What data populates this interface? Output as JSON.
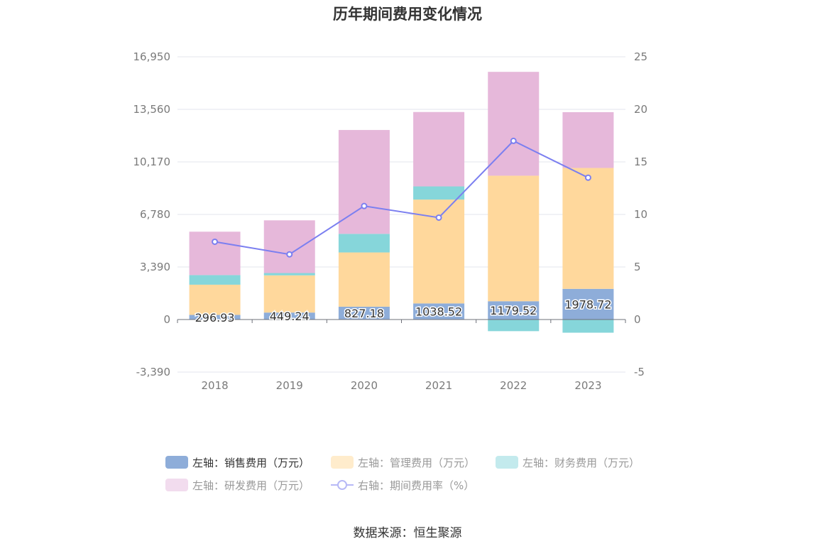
{
  "page": {
    "title": "历年期间费用变化情况",
    "source": "数据来源：恒生聚源"
  },
  "chart_data": {
    "type": "bar",
    "stacked": true,
    "title": "历年期间费用变化情况",
    "categories": [
      "2018",
      "2019",
      "2020",
      "2021",
      "2022",
      "2023"
    ],
    "left_axis": {
      "min": -3390,
      "max": 16950,
      "ticks": [
        -3390,
        0,
        3390,
        6780,
        10170,
        13560,
        16950
      ],
      "tick_labels": [
        "-3,390",
        "0",
        "3,390",
        "6,780",
        "10,170",
        "13,560",
        "16,950"
      ]
    },
    "right_axis": {
      "min": -5,
      "max": 25,
      "ticks": [
        -5,
        0,
        5,
        10,
        15,
        20,
        25
      ],
      "tick_labels": [
        "-5",
        "0",
        "5",
        "10",
        "15",
        "20",
        "25"
      ]
    },
    "series": [
      {
        "name": "左轴：销售费用（万元）",
        "axis": "left",
        "kind": "bar",
        "color": "#8eadd9",
        "values": [
          296.93,
          449.24,
          827.18,
          1038.52,
          1179.52,
          1978.72
        ],
        "labels": [
          "296.93",
          "449.24",
          "827.18",
          "1038.52",
          "1179.52",
          "1978.72"
        ]
      },
      {
        "name": "左轴：管理费用（万元）",
        "axis": "left",
        "kind": "bar",
        "color": "#ffd89c",
        "values": [
          1950,
          2400,
          3500,
          6700,
          8100,
          7800
        ]
      },
      {
        "name": "左轴：财务费用（万元）",
        "axis": "left",
        "kind": "bar",
        "color": "#86d6da",
        "values": [
          620,
          150,
          1200,
          850,
          -750,
          -850
        ]
      },
      {
        "name": "左轴：研发费用（万元）",
        "axis": "left",
        "kind": "bar",
        "color": "#e6b8da",
        "values": [
          2800,
          3400,
          6700,
          4800,
          6700,
          3600
        ]
      },
      {
        "name": "右轴：期间费用率（%）",
        "axis": "right",
        "kind": "line",
        "color": "#7b7ff0",
        "values": [
          7.4,
          6.2,
          10.8,
          9.7,
          17.0,
          13.5
        ]
      }
    ],
    "legend": {
      "position": "bottom",
      "items": [
        {
          "label": "左轴：销售费用（万元）",
          "color": "#8eadd9",
          "marker": "rect",
          "text_color": "#333333"
        },
        {
          "label": "左轴：管理费用（万元）",
          "color": "#ffeccc",
          "marker": "rect",
          "text_color": "#999999"
        },
        {
          "label": "左轴：财务费用（万元）",
          "color": "#c3eaed",
          "marker": "rect",
          "text_color": "#999999"
        },
        {
          "label": "左轴：研发费用（万元）",
          "color": "#f2dcee",
          "marker": "rect",
          "text_color": "#999999"
        },
        {
          "label": "右轴：期间费用率（%）",
          "color": "#b7b9f6",
          "marker": "line",
          "text_color": "#999999"
        }
      ]
    }
  }
}
